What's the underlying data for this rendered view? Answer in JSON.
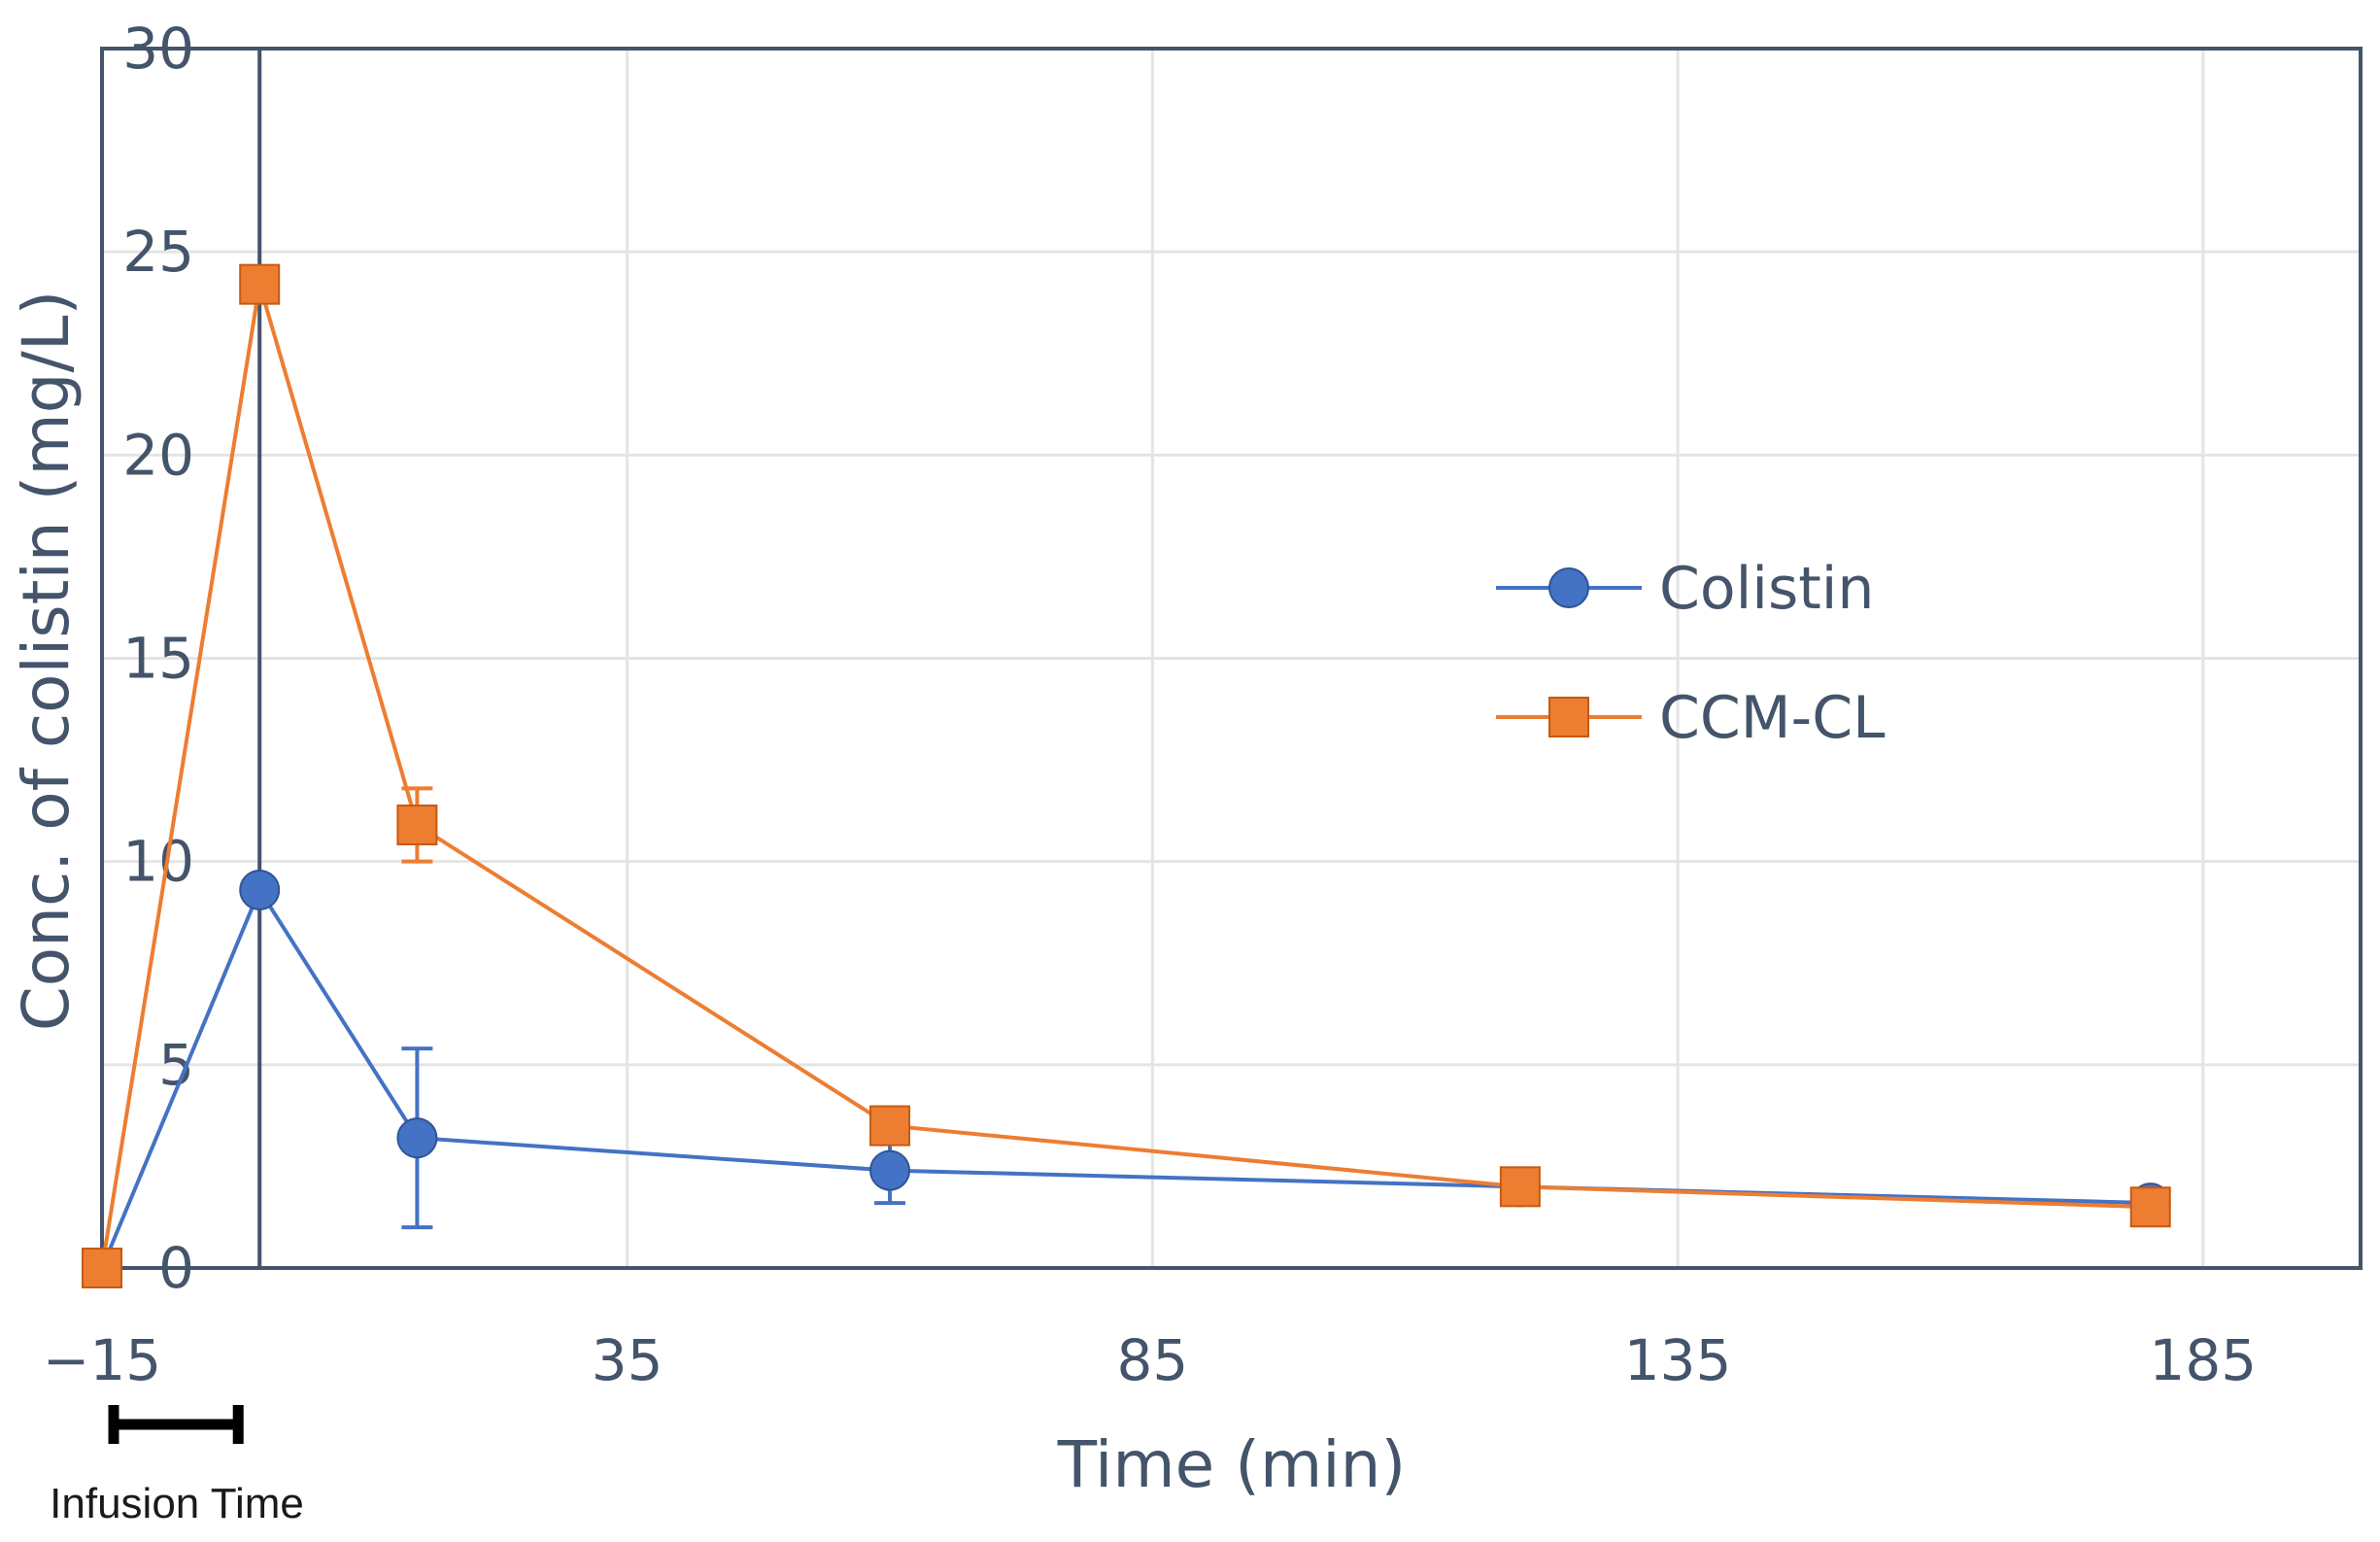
{
  "chart_data": {
    "type": "line",
    "xlabel": "Time (min)",
    "ylabel": "Conc. of colistin (mg/L)",
    "xlim": [
      -15,
      200
    ],
    "ylim": [
      0,
      30
    ],
    "x_ticks": [
      -15,
      35,
      85,
      135,
      185
    ],
    "x_tick_labels": [
      "−15",
      "35",
      "85",
      "135",
      "185"
    ],
    "y_ticks": [
      0,
      5,
      10,
      15,
      20,
      25,
      30
    ],
    "y_tick_labels": [
      "0",
      "5",
      "10",
      "15",
      "20",
      "25",
      "30"
    ],
    "grid": true,
    "legend_position": "right",
    "vertical_marker_x": 0,
    "series": [
      {
        "name": "Colistin",
        "color": "#4472c4",
        "marker": "circle",
        "points": [
          {
            "x": -15,
            "y": 0
          },
          {
            "x": 0,
            "y": 9.3
          },
          {
            "x": 15,
            "y": 3.2,
            "err": 2.2
          },
          {
            "x": 60,
            "y": 2.4,
            "err": 0.8
          },
          {
            "x": 120,
            "y": 2.0
          },
          {
            "x": 180,
            "y": 1.6
          }
        ]
      },
      {
        "name": "CCM-CL",
        "color": "#ed7d31",
        "marker": "square",
        "points": [
          {
            "x": -15,
            "y": 0
          },
          {
            "x": 0,
            "y": 24.2
          },
          {
            "x": 15,
            "y": 10.9,
            "err": 0.9
          },
          {
            "x": 60,
            "y": 3.5
          },
          {
            "x": 120,
            "y": 2.0
          },
          {
            "x": 180,
            "y": 1.5
          }
        ]
      }
    ],
    "annotation": {
      "label": "Infusion Time",
      "x_start": -15,
      "x_end": 0
    }
  }
}
